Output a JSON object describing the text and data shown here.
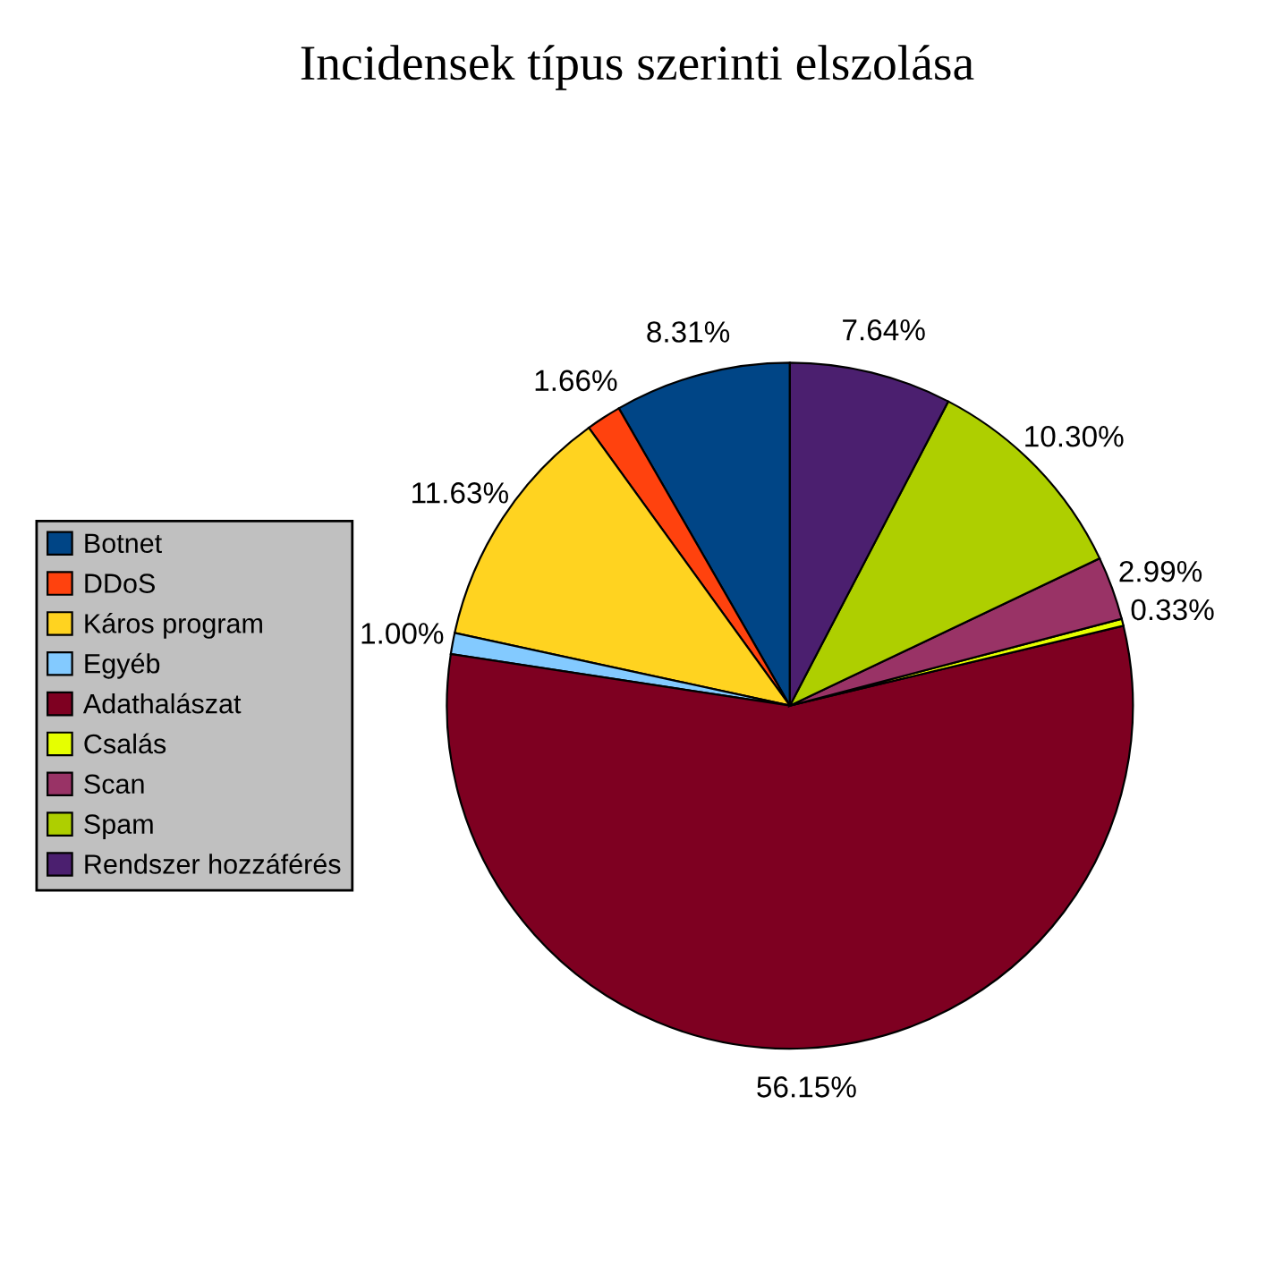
{
  "chart_data": {
    "type": "pie",
    "title": "Incidensek típus szerinti elszolása",
    "categories": [
      "Botnet",
      "DDoS",
      "Káros program",
      "Egyéb",
      "Adathalászat",
      "Csalás",
      "Scan",
      "Spam",
      "Rendszer hozzáférés"
    ],
    "values": [
      8.31,
      1.66,
      11.63,
      1.0,
      56.15,
      0.33,
      2.99,
      10.3,
      7.64
    ],
    "value_labels": [
      "8.31%",
      "1.66%",
      "11.63%",
      "1.00%",
      "56.15%",
      "0.33%",
      "2.99%",
      "10.30%",
      "7.64%"
    ],
    "colors": [
      "#004586",
      "#ff420e",
      "#ffd320",
      "#83caff",
      "#7e0021",
      "#e6ff00",
      "#993366",
      "#aecf00",
      "#4b1f6f"
    ],
    "legend": "left"
  }
}
